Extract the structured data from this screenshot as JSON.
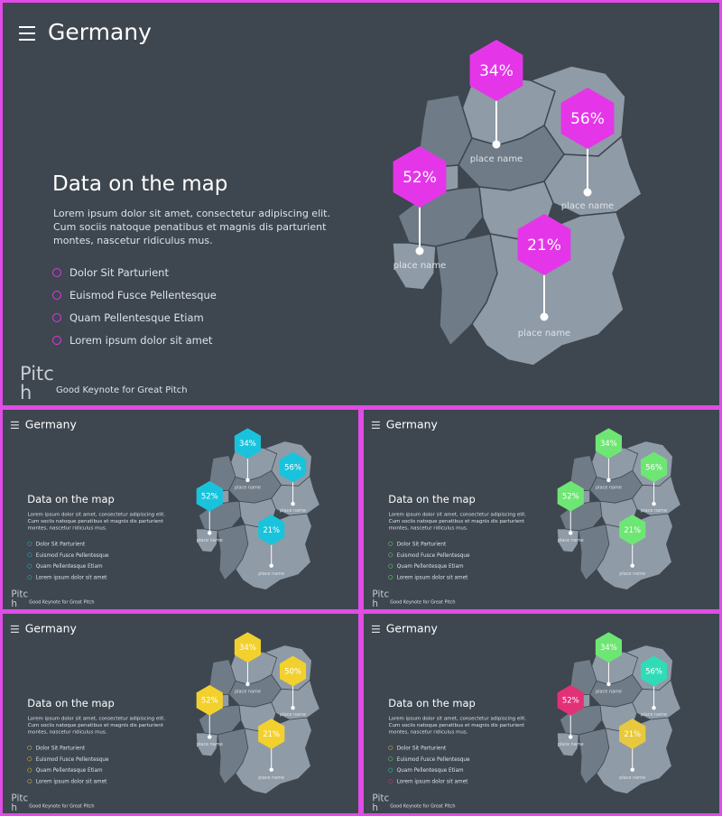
{
  "deck": {
    "title": "Germany",
    "heading": "Data on the map",
    "body": "Lorem ipsum dolor sit amet, consectetur adipiscing elit. Cum sociis natoque penatibus et magnis dis parturient montes, nascetur ridiculus mus.",
    "bullets": [
      "Dolor Sit Parturient",
      "Euismod Fusce Pellentesque",
      "Quam Pellentesque Etiam",
      "Lorem ipsum dolor sit amet"
    ],
    "brand": "Pitch",
    "tagline": "Good Keynote for Great Pitch",
    "place_label": "place name"
  },
  "markers": [
    {
      "label": "34%"
    },
    {
      "label": "56%"
    },
    {
      "label": "52%"
    },
    {
      "label": "21%"
    }
  ],
  "markers_yellow": [
    {
      "label": "34%"
    },
    {
      "label": "50%"
    },
    {
      "label": "52%"
    },
    {
      "label": "21%"
    }
  ],
  "colors": {
    "background": "#3e464f",
    "frame": "#e14be6",
    "map_fill": "#8f9ba7",
    "map_fill_dark": "#6f7b87",
    "magenta": "#e436e8",
    "cyan": "#19c3dc",
    "green": "#6ee673",
    "yellow": "#f2d12e",
    "teal": "#2fdcb7",
    "pink": "#e33177",
    "gold": "#e8c93d"
  },
  "variants": [
    {
      "id": "main",
      "marker_colors": [
        "magenta",
        "magenta",
        "magenta",
        "magenta"
      ],
      "bullet_colors": [
        "magenta",
        "magenta",
        "magenta",
        "magenta"
      ]
    },
    {
      "id": "cyan",
      "marker_colors": [
        "cyan",
        "cyan",
        "cyan",
        "cyan"
      ],
      "bullet_colors": [
        "cyan",
        "cyan",
        "cyan",
        "cyan"
      ]
    },
    {
      "id": "green",
      "marker_colors": [
        "green",
        "green",
        "green",
        "green"
      ],
      "bullet_colors": [
        "green",
        "green",
        "green",
        "green"
      ]
    },
    {
      "id": "yellow",
      "marker_colors": [
        "yellow",
        "yellow",
        "yellow",
        "yellow"
      ],
      "bullet_colors": [
        "yellow",
        "yellow",
        "yellow",
        "yellow"
      ]
    },
    {
      "id": "mixed",
      "marker_colors": [
        "green",
        "teal",
        "pink",
        "gold"
      ],
      "bullet_colors": [
        "gold",
        "green",
        "teal",
        "pink"
      ]
    }
  ]
}
